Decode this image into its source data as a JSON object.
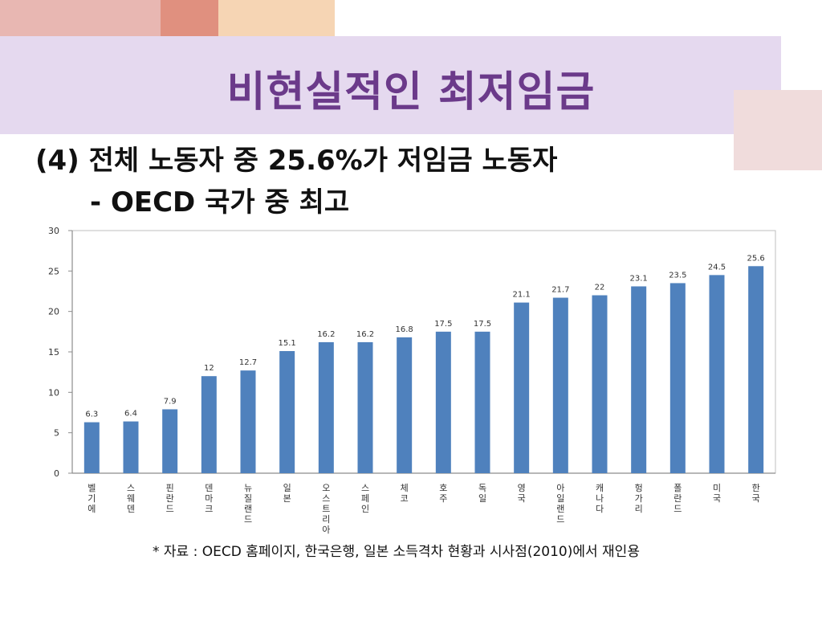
{
  "slide": {
    "title": "비현실적인 최저임금",
    "subtitle_line1": "(4) 전체 노동자 중 25.6%가 저임금 노동자",
    "subtitle_line2": "- OECD 국가 중 최고",
    "source_note": "* 자료 : OECD 홈페이지, 한국은행, 일본 소득격차 현황과 시사점(2010)에서 재인용"
  },
  "colors": {
    "bar": "#4f81bd",
    "title": "#6b3a8a",
    "band": "#e5d9ef"
  },
  "chart_data": {
    "type": "bar",
    "title": "",
    "xlabel": "",
    "ylabel": "",
    "ylim": [
      0,
      30
    ],
    "yticks": [
      0,
      5,
      10,
      15,
      20,
      25,
      30
    ],
    "grid": false,
    "legend": "none",
    "categories": [
      "벨기에",
      "스웨덴",
      "핀란드",
      "덴마크",
      "뉴질랜드",
      "일본",
      "오스트리아",
      "스페인",
      "체코",
      "호주",
      "독일",
      "영국",
      "아일랜드",
      "캐나다",
      "헝가리",
      "폴란드",
      "미국",
      "한국"
    ],
    "values": [
      6.3,
      6.4,
      7.9,
      12,
      12.7,
      15.1,
      16.2,
      16.2,
      16.8,
      17.5,
      17.5,
      21.1,
      21.7,
      22,
      23.1,
      23.5,
      24.5,
      25.6
    ],
    "value_labels": [
      "6.3",
      "6.4",
      "7.9",
      "12",
      "12.7",
      "15.1",
      "16.2",
      "16.2",
      "16.8",
      "17.5",
      "17.5",
      "21.1",
      "21.7",
      "22",
      "23.1",
      "23.5",
      "24.5",
      "25.6"
    ]
  }
}
